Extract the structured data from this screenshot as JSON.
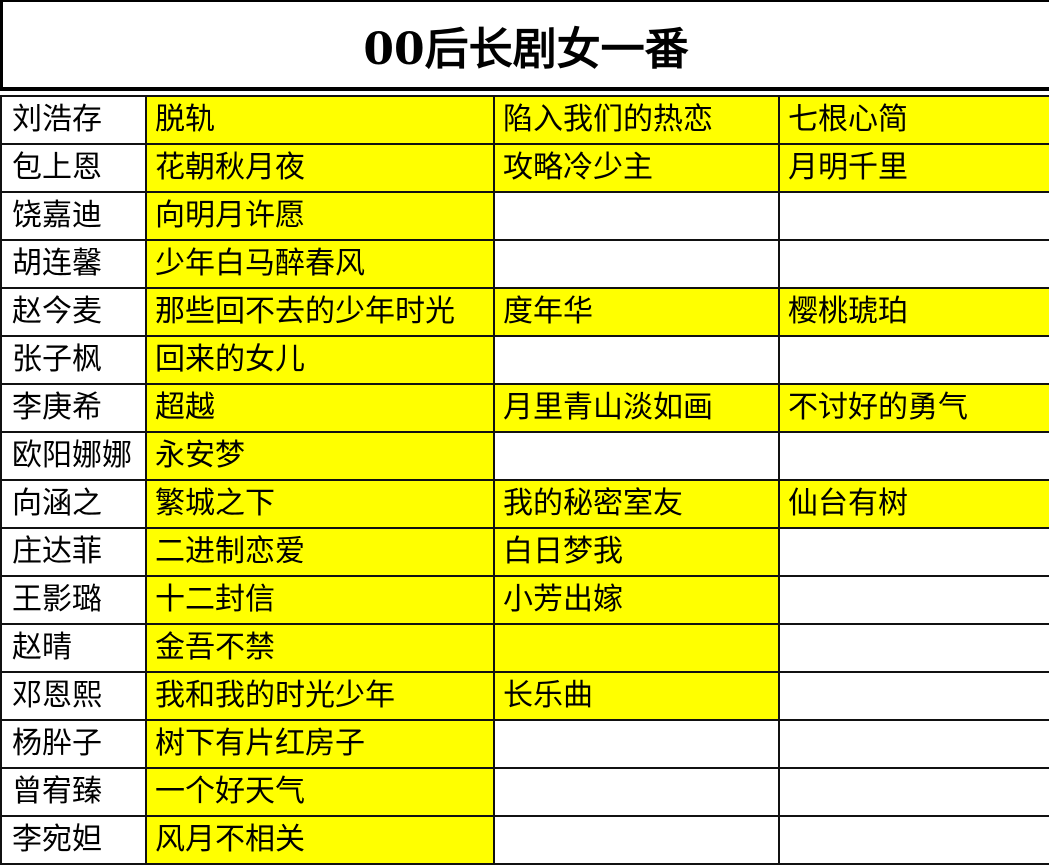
{
  "title": "00后长剧女一番",
  "highlight_color": "#ffff00",
  "rows": [
    {
      "name": "刘浩存",
      "dramas": [
        "脱轨",
        "陷入我们的热恋",
        "七根心简"
      ],
      "highlighted": [
        true,
        true,
        true
      ]
    },
    {
      "name": "包上恩",
      "dramas": [
        "花朝秋月夜",
        "攻略冷少主",
        "月明千里"
      ],
      "highlighted": [
        true,
        true,
        true
      ]
    },
    {
      "name": "饶嘉迪",
      "dramas": [
        "向明月许愿",
        "",
        ""
      ],
      "highlighted": [
        true,
        false,
        false
      ]
    },
    {
      "name": "胡连馨",
      "dramas": [
        "少年白马醉春风",
        "",
        ""
      ],
      "highlighted": [
        true,
        false,
        false
      ]
    },
    {
      "name": "赵今麦",
      "dramas": [
        "那些回不去的少年时光",
        "度年华",
        "樱桃琥珀"
      ],
      "highlighted": [
        true,
        true,
        true
      ]
    },
    {
      "name": "张子枫",
      "dramas": [
        "回来的女儿",
        "",
        ""
      ],
      "highlighted": [
        true,
        false,
        false
      ]
    },
    {
      "name": "李庚希",
      "dramas": [
        "超越",
        "月里青山淡如画",
        "不讨好的勇气"
      ],
      "highlighted": [
        true,
        true,
        true
      ]
    },
    {
      "name": "欧阳娜娜",
      "dramas": [
        "永安梦",
        "",
        ""
      ],
      "highlighted": [
        true,
        false,
        false
      ]
    },
    {
      "name": "向涵之",
      "dramas": [
        "繁城之下",
        "我的秘密室友",
        "仙台有树"
      ],
      "highlighted": [
        true,
        true,
        true
      ]
    },
    {
      "name": "庄达菲",
      "dramas": [
        "二进制恋爱",
        "白日梦我",
        ""
      ],
      "highlighted": [
        true,
        true,
        false
      ]
    },
    {
      "name": "王影璐",
      "dramas": [
        "十二封信",
        "小芳出嫁",
        ""
      ],
      "highlighted": [
        true,
        true,
        false
      ]
    },
    {
      "name": "赵晴",
      "dramas": [
        "金吾不禁",
        "",
        ""
      ],
      "highlighted": [
        true,
        true,
        false
      ]
    },
    {
      "name": "邓恩熙",
      "dramas": [
        "我和我的时光少年",
        "长乐曲",
        ""
      ],
      "highlighted": [
        true,
        true,
        false
      ]
    },
    {
      "name": "杨肸子",
      "dramas": [
        "树下有片红房子",
        "",
        ""
      ],
      "highlighted": [
        true,
        false,
        false
      ]
    },
    {
      "name": "曾宥臻",
      "dramas": [
        "一个好天气",
        "",
        ""
      ],
      "highlighted": [
        true,
        false,
        false
      ]
    },
    {
      "name": "李宛妲",
      "dramas": [
        "风月不相关",
        "",
        ""
      ],
      "highlighted": [
        true,
        false,
        false
      ]
    }
  ]
}
